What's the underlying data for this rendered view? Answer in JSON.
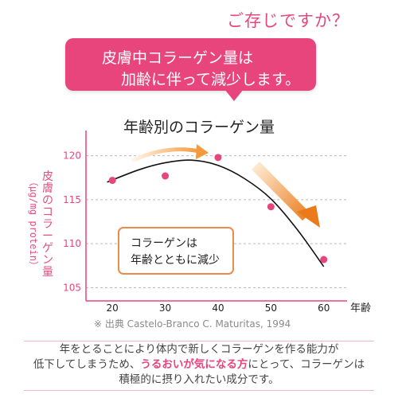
{
  "header": {
    "lead": "ご存じですか？",
    "bubble_line1": "皮膚中コラーゲン量は",
    "bubble_line2": "加齢に伴って減少します。"
  },
  "chart_data": {
    "type": "scatter",
    "title": "年齢別のコラーゲン量",
    "xlabel": "年齢",
    "ylabel": "皮膚のコラーゲン量",
    "yunit": "（μg/mg protein）",
    "x_ticks": [
      20,
      30,
      40,
      50,
      60
    ],
    "y_ticks": [
      105,
      110,
      115,
      120
    ],
    "xlim": [
      15,
      62
    ],
    "ylim": [
      103.5,
      122.5
    ],
    "grid": true,
    "points": [
      {
        "x": 20,
        "y": 117.2
      },
      {
        "x": 30,
        "y": 117.7
      },
      {
        "x": 40,
        "y": 119.8
      },
      {
        "x": 50,
        "y": 114.2
      },
      {
        "x": 60,
        "y": 108.2
      }
    ],
    "trend_line": [
      {
        "x": 19,
        "y": 117.0
      },
      {
        "x": 25,
        "y": 118.4
      },
      {
        "x": 30,
        "y": 119.2
      },
      {
        "x": 35,
        "y": 119.5
      },
      {
        "x": 40,
        "y": 118.9
      },
      {
        "x": 45,
        "y": 117.4
      },
      {
        "x": 50,
        "y": 115.1
      },
      {
        "x": 55,
        "y": 111.6
      },
      {
        "x": 60,
        "y": 107.4
      }
    ],
    "annotation": {
      "line1": "コラーゲンは",
      "line2": "年齢とともに減少"
    },
    "source": "※ 出典 Castelo-Branco C. Maturitas, 1994",
    "colors": {
      "point": "#e8457c",
      "curve": "#111111",
      "axis": "#e8457c",
      "grid": "#b8b8b8",
      "arrow": "#f08a24"
    }
  },
  "footer": {
    "text1": "年をとることにより体内で新しくコラーゲンを作る能力が",
    "text2a": "低下してしまうため、",
    "text2b": "うるおいが気になる方",
    "text2c": "にとって、コラーゲンは",
    "text3": "積極的に摂り入れたい成分です。"
  }
}
